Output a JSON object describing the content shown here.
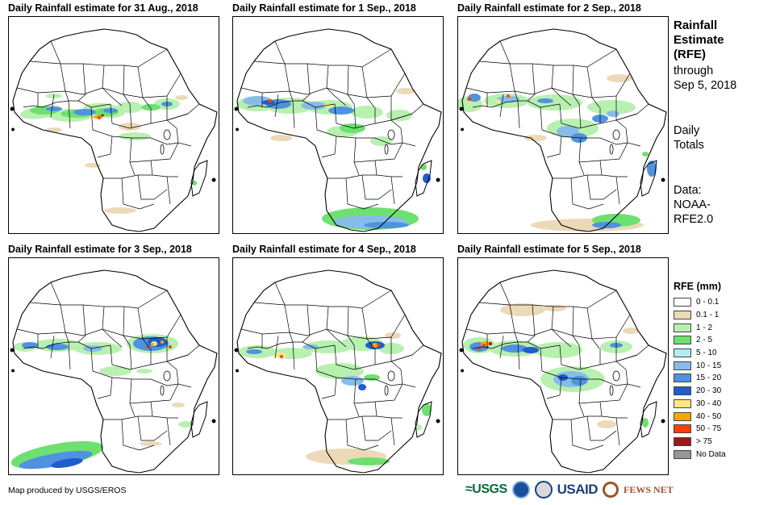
{
  "panels": [
    {
      "title": "Daily Rainfall estimate for 31 Aug., 2018",
      "day": "aug31"
    },
    {
      "title": "Daily Rainfall estimate for 1 Sep., 2018",
      "day": "sep1"
    },
    {
      "title": "Daily Rainfall estimate for 2 Sep., 2018",
      "day": "sep2"
    },
    {
      "title": "Daily Rainfall estimate for 3 Sep., 2018",
      "day": "sep3"
    },
    {
      "title": "Daily Rainfall estimate for 4 Sep., 2018",
      "day": "sep4"
    },
    {
      "title": "Daily Rainfall estimate for 5 Sep., 2018",
      "day": "sep5"
    }
  ],
  "side": {
    "title_line1": "Rainfall",
    "title_line2": "Estimate",
    "title_line3": "(RFE)",
    "through_line1": "through",
    "through_line2": "Sep 5, 2018",
    "totals_line1": "Daily",
    "totals_line2": "Totals",
    "data_line1": "Data:",
    "data_line2": "NOAA-",
    "data_line3": "RFE2.0"
  },
  "legend": {
    "title": "RFE (mm)",
    "classes": [
      {
        "label": "0 - 0.1",
        "color": "#ffffff"
      },
      {
        "label": "0.1 - 1",
        "color": "#ecd9b8"
      },
      {
        "label": "1 - 2",
        "color": "#b8f0b0"
      },
      {
        "label": "2 - 5",
        "color": "#6ee070"
      },
      {
        "label": "5 - 10",
        "color": "#b0ecf4"
      },
      {
        "label": "10 - 15",
        "color": "#86bde8"
      },
      {
        "label": "15 - 20",
        "color": "#4f92e0"
      },
      {
        "label": "20 - 30",
        "color": "#1f5ccd"
      },
      {
        "label": "30 - 40",
        "color": "#ffe880"
      },
      {
        "label": "40 - 50",
        "color": "#ffa500"
      },
      {
        "label": "50 - 75",
        "color": "#ff4000"
      },
      {
        "label": "> 75",
        "color": "#a01818"
      },
      {
        "label": "No Data",
        "color": "#969696"
      }
    ]
  },
  "credit": "Map produced by USGS/EROS",
  "logos": {
    "usgs": "≈USGS",
    "usaid": "USAID",
    "fews": "FEWS NET"
  }
}
